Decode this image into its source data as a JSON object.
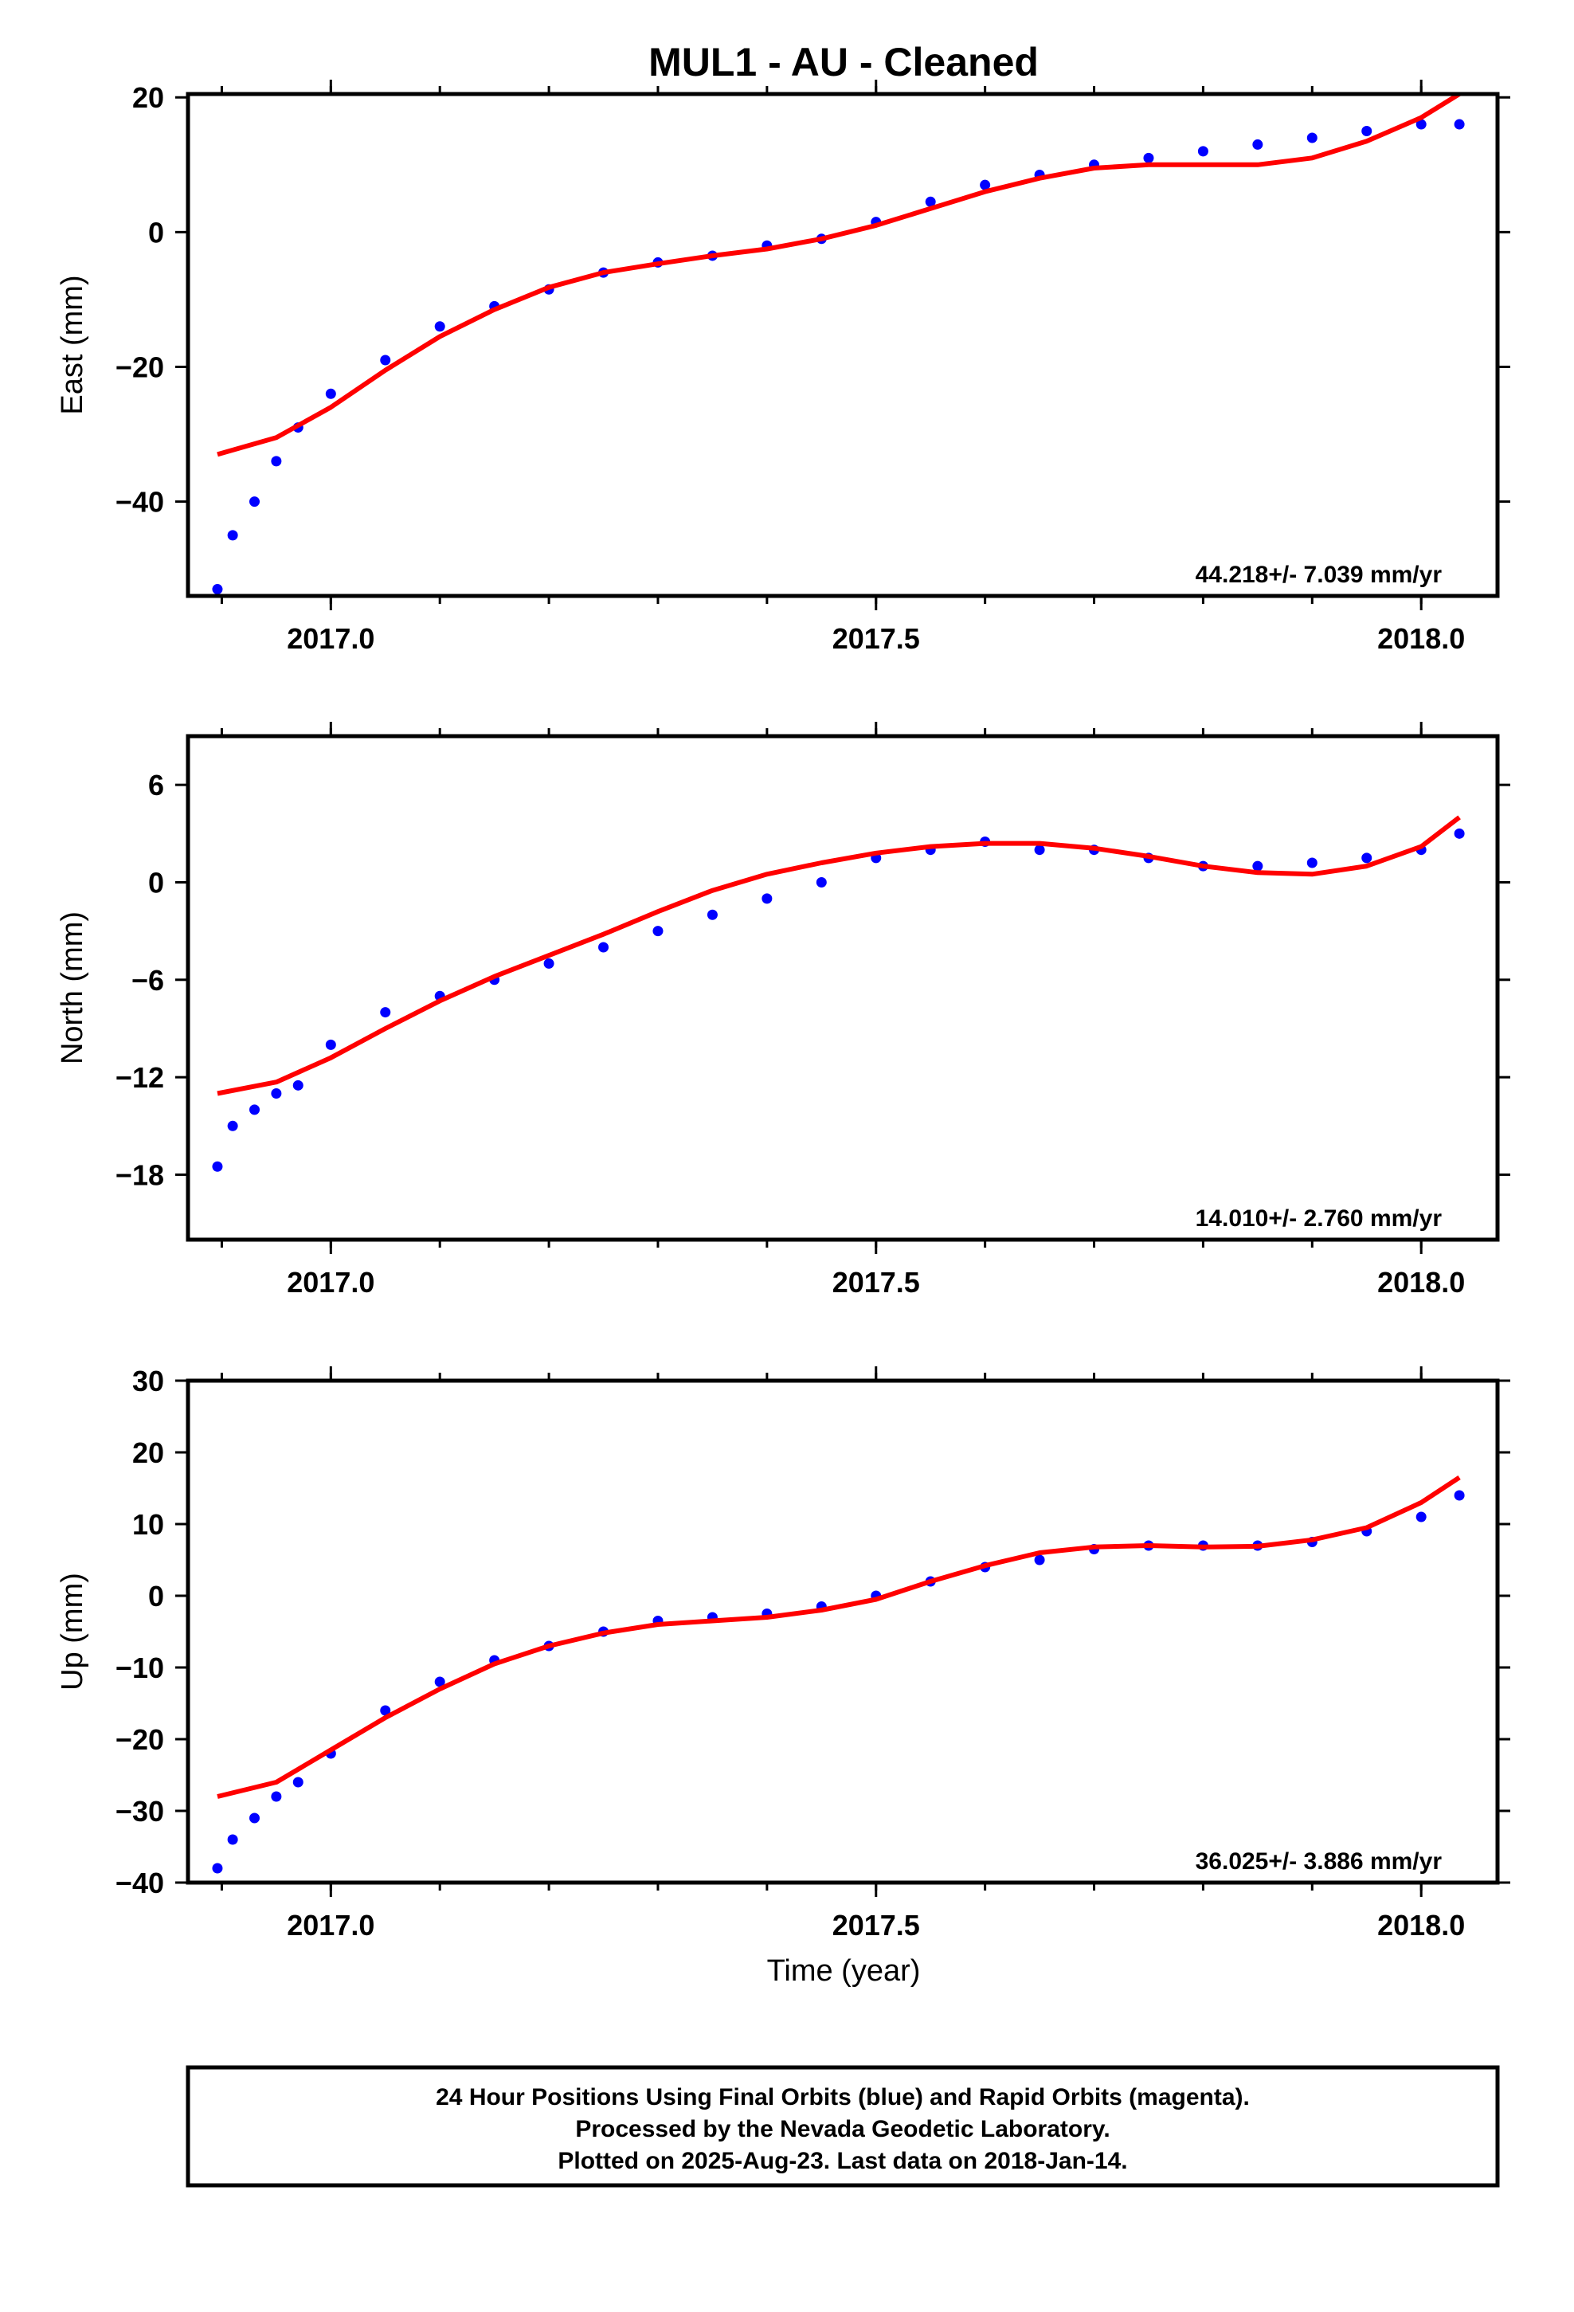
{
  "title": "MUL1  - AU - Cleaned",
  "xlabel": "Time (year)",
  "footer": {
    "line1": "24 Hour Positions Using Final Orbits (blue) and Rapid Orbits (magenta).",
    "line2": "Processed by the Nevada Geodetic Laboratory.",
    "line3": "Plotted on 2025-Aug-23. Last data on 2018-Jan-14."
  },
  "colors": {
    "points": "#0000ff",
    "fit": "#ff0000",
    "frame": "#000000"
  },
  "chart_data": [
    {
      "type": "scatter",
      "ylabel": "East (mm)",
      "rate_label": "44.218+/- 7.039 mm/yr",
      "xlim": [
        2016.869,
        2018.07
      ],
      "ylim": [
        -54,
        20.5
      ],
      "x_ticks": [
        2017.0,
        2017.5,
        2018.0
      ],
      "x_tick_labels": [
        "2017.0",
        "2017.5",
        "2018.0"
      ],
      "y_ticks": [
        -40,
        -20,
        0,
        20
      ],
      "y_tick_labels": [
        "−40",
        "−20",
        "0",
        "20"
      ],
      "series": [
        {
          "kind": "points",
          "x": [
            2016.896,
            2016.91,
            2016.93,
            2016.95,
            2016.97,
            2017.0,
            2017.05,
            2017.1,
            2017.15,
            2017.2,
            2017.25,
            2017.3,
            2017.35,
            2017.4,
            2017.45,
            2017.5,
            2017.55,
            2017.6,
            2017.65,
            2017.7,
            2017.75,
            2017.8,
            2017.85,
            2017.9,
            2017.95,
            2018.0,
            2018.035
          ],
          "y": [
            -53,
            -45,
            -40,
            -34,
            -29,
            -24,
            -19,
            -14,
            -11,
            -8.5,
            -6,
            -4.5,
            -3.5,
            -2,
            -1,
            1.5,
            4.5,
            7,
            8.5,
            10,
            11,
            12,
            13,
            14,
            15,
            16,
            16
          ]
        },
        {
          "kind": "fit",
          "x": [
            2016.896,
            2016.95,
            2017.0,
            2017.05,
            2017.1,
            2017.15,
            2017.2,
            2017.25,
            2017.3,
            2017.35,
            2017.4,
            2017.45,
            2017.5,
            2017.55,
            2017.6,
            2017.65,
            2017.7,
            2017.75,
            2017.8,
            2017.85,
            2017.9,
            2017.95,
            2018.0,
            2018.035
          ],
          "y": [
            -33,
            -30.5,
            -26,
            -20.5,
            -15.5,
            -11.5,
            -8.2,
            -6,
            -4.7,
            -3.5,
            -2.5,
            -1,
            1,
            3.5,
            6,
            8,
            9.5,
            10,
            10,
            10,
            11,
            13.5,
            17,
            20.5
          ]
        }
      ]
    },
    {
      "type": "scatter",
      "ylabel": "North (mm)",
      "rate_label": "14.010+/- 2.760 mm/yr",
      "xlim": [
        2016.869,
        2018.07
      ],
      "ylim": [
        -22,
        9
      ],
      "x_ticks": [
        2017.0,
        2017.5,
        2018.0
      ],
      "x_tick_labels": [
        "2017.0",
        "2017.5",
        "2018.0"
      ],
      "y_ticks": [
        -18,
        -12,
        -6,
        0,
        6
      ],
      "y_tick_labels": [
        "−18",
        "−12",
        "−6",
        "0",
        "6"
      ],
      "series": [
        {
          "kind": "points",
          "x": [
            2016.896,
            2016.91,
            2016.93,
            2016.95,
            2016.97,
            2017.0,
            2017.05,
            2017.1,
            2017.15,
            2017.2,
            2017.25,
            2017.3,
            2017.35,
            2017.4,
            2017.45,
            2017.5,
            2017.55,
            2017.6,
            2017.65,
            2017.7,
            2017.75,
            2017.8,
            2017.85,
            2017.9,
            2017.95,
            2018.0,
            2018.035
          ],
          "y": [
            -17.5,
            -15,
            -14,
            -13,
            -12.5,
            -10,
            -8,
            -7,
            -6,
            -5,
            -4,
            -3,
            -2,
            -1,
            0,
            1.5,
            2,
            2.5,
            2,
            2,
            1.5,
            1,
            1,
            1.2,
            1.5,
            2,
            3
          ]
        },
        {
          "kind": "fit",
          "x": [
            2016.896,
            2016.95,
            2017.0,
            2017.05,
            2017.1,
            2017.15,
            2017.2,
            2017.25,
            2017.3,
            2017.35,
            2017.4,
            2017.45,
            2017.5,
            2017.55,
            2017.6,
            2017.65,
            2017.7,
            2017.75,
            2017.8,
            2017.85,
            2017.9,
            2017.95,
            2018.0,
            2018.035
          ],
          "y": [
            -13,
            -12.3,
            -10.8,
            -9,
            -7.3,
            -5.8,
            -4.5,
            -3.2,
            -1.8,
            -0.5,
            0.5,
            1.2,
            1.8,
            2.2,
            2.4,
            2.4,
            2.1,
            1.6,
            1,
            0.6,
            0.5,
            1,
            2.2,
            4
          ]
        }
      ]
    },
    {
      "type": "scatter",
      "ylabel": "Up (mm)",
      "rate_label": "36.025+/- 3.886 mm/yr",
      "xlim": [
        2016.869,
        2018.07
      ],
      "ylim": [
        -40,
        30
      ],
      "x_ticks": [
        2017.0,
        2017.5,
        2018.0
      ],
      "x_tick_labels": [
        "2017.0",
        "2017.5",
        "2018.0"
      ],
      "y_ticks": [
        -40,
        -30,
        -20,
        -10,
        0,
        10,
        20,
        30
      ],
      "y_tick_labels": [
        "−40",
        "−30",
        "−20",
        "−10",
        "0",
        "10",
        "20",
        "30"
      ],
      "series": [
        {
          "kind": "points",
          "x": [
            2016.896,
            2016.91,
            2016.93,
            2016.95,
            2016.97,
            2017.0,
            2017.05,
            2017.1,
            2017.15,
            2017.2,
            2017.25,
            2017.3,
            2017.35,
            2017.4,
            2017.45,
            2017.5,
            2017.55,
            2017.6,
            2017.65,
            2017.7,
            2017.75,
            2017.8,
            2017.85,
            2017.9,
            2017.95,
            2018.0,
            2018.035
          ],
          "y": [
            -38,
            -34,
            -31,
            -28,
            -26,
            -22,
            -16,
            -12,
            -9,
            -7,
            -5,
            -3.5,
            -3,
            -2.5,
            -1.5,
            0,
            2,
            4,
            5,
            6.5,
            7,
            7,
            7,
            7.5,
            9,
            11,
            14
          ]
        },
        {
          "kind": "fit",
          "x": [
            2016.896,
            2016.95,
            2017.0,
            2017.05,
            2017.1,
            2017.15,
            2017.2,
            2017.25,
            2017.3,
            2017.35,
            2017.4,
            2017.45,
            2017.5,
            2017.55,
            2017.6,
            2017.65,
            2017.7,
            2017.75,
            2017.8,
            2017.85,
            2017.9,
            2017.95,
            2018.0,
            2018.035
          ],
          "y": [
            -28,
            -26,
            -21.5,
            -17,
            -13,
            -9.5,
            -7,
            -5.2,
            -4,
            -3.5,
            -3,
            -2,
            -0.5,
            2,
            4.2,
            6,
            6.8,
            7,
            6.8,
            6.9,
            7.8,
            9.5,
            13,
            16.5
          ]
        }
      ]
    }
  ]
}
